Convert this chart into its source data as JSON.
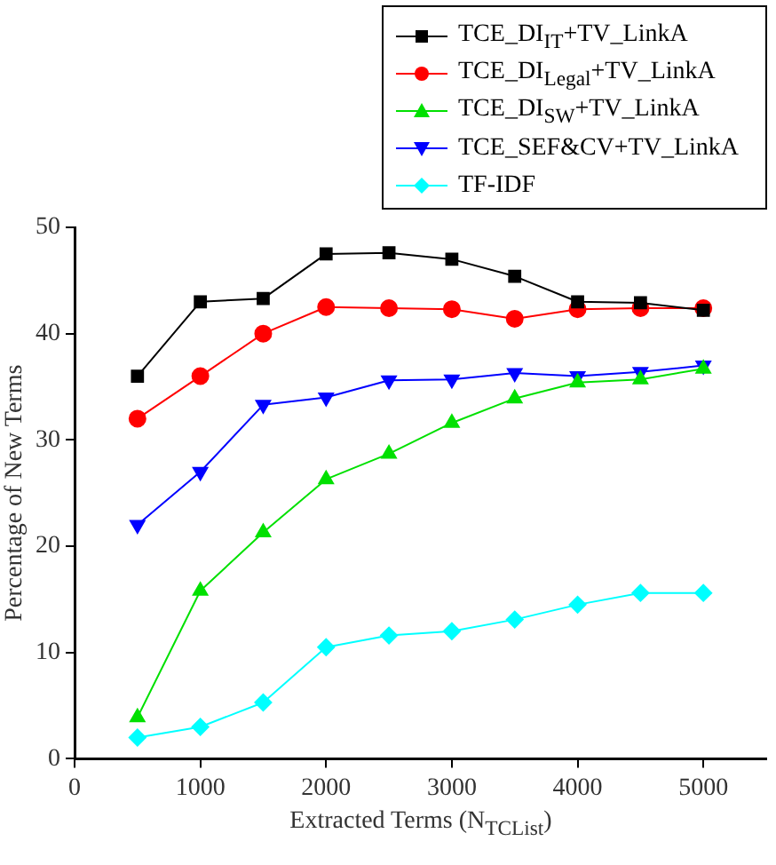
{
  "chart_data": {
    "type": "line",
    "xlabel": "Extracted Terms (N$_{TCList}$)",
    "ylabel": "Percentage of New Terms",
    "x": [
      500,
      1000,
      1500,
      2000,
      2500,
      3000,
      3500,
      4000,
      4500,
      5000
    ],
    "xlim": [
      0,
      5500
    ],
    "xticks": [
      0,
      1000,
      2000,
      3000,
      4000,
      5000
    ],
    "ylim": [
      0,
      50
    ],
    "yticks": [
      0,
      10,
      20,
      30,
      40,
      50
    ],
    "grid": false,
    "legend": "top right",
    "line_style": "solid",
    "series": [
      {
        "name": "TCE_DI$_{IT}$+TV_LinkA",
        "color": "#000000",
        "marker": "square",
        "values": [
          36,
          43,
          43.3,
          47.5,
          47.6,
          47,
          45.4,
          43,
          42.9,
          42.2
        ]
      },
      {
        "name": "TCE_DI$_{Legal}$+TV_LinkA",
        "color": "#ff0000",
        "marker": "circle",
        "values": [
          32,
          36,
          40,
          42.5,
          42.4,
          42.3,
          41.4,
          42.3,
          42.4,
          42.4
        ]
      },
      {
        "name": "TCE_DI$_{SW}$+TV_LinkA",
        "color": "#00e000",
        "marker": "triangle",
        "values": [
          3.9,
          15.8,
          21.3,
          26.3,
          28.7,
          31.6,
          33.9,
          35.4,
          35.7,
          36.7
        ]
      },
      {
        "name": "TCE_SEF&CV+TV_LinkA",
        "color": "#0000ff",
        "marker": "triangle-down",
        "values": [
          22,
          27,
          33.3,
          34,
          35.6,
          35.7,
          36.3,
          36,
          36.4,
          37
        ]
      },
      {
        "name": "TF-IDF",
        "color": "#00ffff",
        "marker": "diamond",
        "values": [
          2,
          3,
          5.3,
          10.5,
          11.6,
          12,
          13.1,
          14.5,
          15.6,
          15.6
        ]
      }
    ]
  }
}
